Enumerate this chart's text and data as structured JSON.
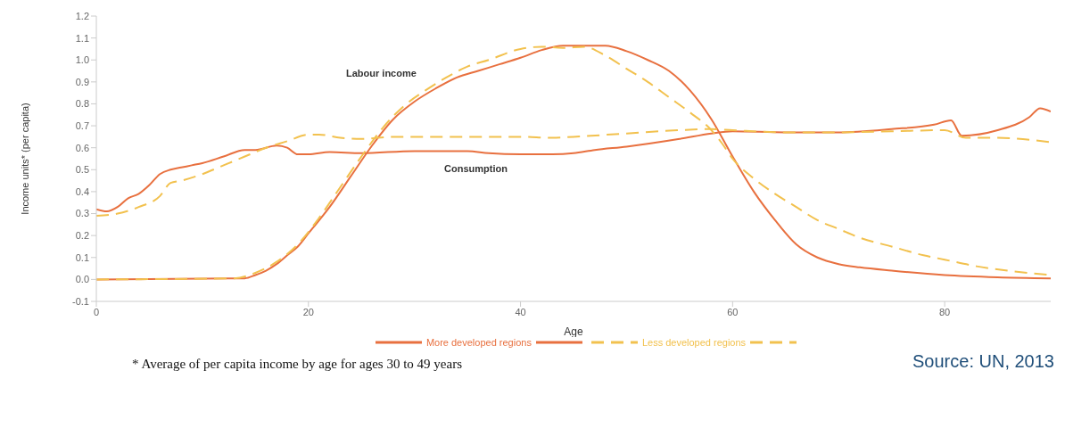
{
  "chart_data": {
    "type": "line",
    "xlabel": "Age",
    "ylabel": "Income units* (per capita)",
    "xlim": [
      0,
      90
    ],
    "xticks": [
      0,
      20,
      40,
      60,
      80
    ],
    "ylim": [
      -0.1,
      1.2
    ],
    "yticks": [
      -0.1,
      {
        "value": 0,
        "label": "0.0"
      },
      0.1,
      0.2,
      0.3,
      0.4,
      0.5,
      0.6,
      0.7,
      0.8,
      0.9,
      {
        "value": 1,
        "label": "1.0"
      },
      1.1,
      1.2
    ],
    "grid": false,
    "legend": "bottom",
    "marker": "none",
    "series": [
      {
        "name": "More developed regions",
        "color": "#e8703f",
        "line_style": "solid",
        "x": [
          0,
          14,
          15,
          16,
          17,
          18,
          19,
          20,
          22,
          24,
          26,
          28,
          30,
          32,
          34,
          36,
          38,
          40,
          42,
          44,
          46,
          48,
          50,
          52,
          54,
          56,
          58,
          60,
          62,
          64,
          66,
          68,
          70,
          72,
          75,
          80,
          85,
          90
        ],
        "values": [
          0,
          0.005,
          0.02,
          0.04,
          0.07,
          0.11,
          0.15,
          0.21,
          0.33,
          0.47,
          0.61,
          0.73,
          0.81,
          0.87,
          0.92,
          0.95,
          0.98,
          1.01,
          1.045,
          1.065,
          1.065,
          1.065,
          1.04,
          1.0,
          0.95,
          0.86,
          0.73,
          0.56,
          0.4,
          0.27,
          0.16,
          0.1,
          0.07,
          0.055,
          0.04,
          0.02,
          0.01,
          0.005
        ]
      },
      {
        "color": "#e8703f",
        "line_style": "solid",
        "x": [
          0,
          1,
          2,
          3,
          4,
          5,
          6,
          7,
          8,
          9,
          10,
          12,
          14,
          15,
          17,
          18,
          19,
          20,
          22,
          25,
          30,
          35,
          37,
          40,
          43,
          45,
          47,
          50,
          55,
          58,
          60,
          65,
          70,
          75,
          79,
          80.6,
          81.6,
          85,
          88,
          89,
          90
        ],
        "values": [
          0.32,
          0.31,
          0.33,
          0.37,
          0.39,
          0.43,
          0.48,
          0.5,
          0.51,
          0.52,
          0.53,
          0.56,
          0.59,
          0.59,
          0.61,
          0.6,
          0.57,
          0.57,
          0.58,
          0.575,
          0.585,
          0.585,
          0.575,
          0.57,
          0.57,
          0.575,
          0.59,
          0.605,
          0.64,
          0.665,
          0.675,
          0.67,
          0.67,
          0.685,
          0.705,
          0.725,
          0.655,
          0.68,
          0.74,
          0.78,
          0.765
        ]
      },
      {
        "name": "Less developed regions",
        "color": "#f2c14e",
        "line_style": "dashed",
        "x": [
          0,
          13,
          15,
          17,
          19,
          21,
          23,
          25,
          27,
          29,
          31,
          33,
          35,
          37,
          40,
          42,
          44,
          46,
          48,
          50,
          52,
          54,
          56,
          58,
          59,
          60,
          62,
          64,
          66,
          68,
          70,
          72,
          75,
          78,
          80,
          83,
          86,
          90
        ],
        "values": [
          0,
          0.005,
          0.03,
          0.08,
          0.16,
          0.28,
          0.42,
          0.56,
          0.69,
          0.79,
          0.86,
          0.92,
          0.97,
          1.0,
          1.05,
          1.06,
          1.055,
          1.06,
          1.02,
          0.96,
          0.9,
          0.83,
          0.76,
          0.68,
          0.62,
          0.55,
          0.46,
          0.39,
          0.33,
          0.27,
          0.23,
          0.19,
          0.15,
          0.11,
          0.09,
          0.06,
          0.04,
          0.02
        ]
      },
      {
        "color": "#f2c14e",
        "line_style": "dashed",
        "x": [
          0,
          2,
          4,
          6,
          7,
          8,
          10,
          12,
          14,
          16,
          18,
          20,
          21,
          23,
          25,
          28,
          30,
          35,
          40,
          43,
          45,
          50,
          55,
          58,
          60,
          65,
          70,
          75,
          80,
          82,
          85,
          90
        ],
        "values": [
          0.29,
          0.3,
          0.33,
          0.38,
          0.44,
          0.45,
          0.48,
          0.52,
          0.56,
          0.6,
          0.63,
          0.66,
          0.66,
          0.645,
          0.64,
          0.65,
          0.65,
          0.65,
          0.65,
          0.645,
          0.65,
          0.665,
          0.68,
          0.685,
          0.68,
          0.67,
          0.67,
          0.675,
          0.68,
          0.645,
          0.645,
          0.625
        ]
      }
    ],
    "annotations": [
      "Labour income",
      "Consumption",
      "* Average of per capita income by age for ages 30 to 49 years",
      "Source: UN, 2013"
    ]
  }
}
